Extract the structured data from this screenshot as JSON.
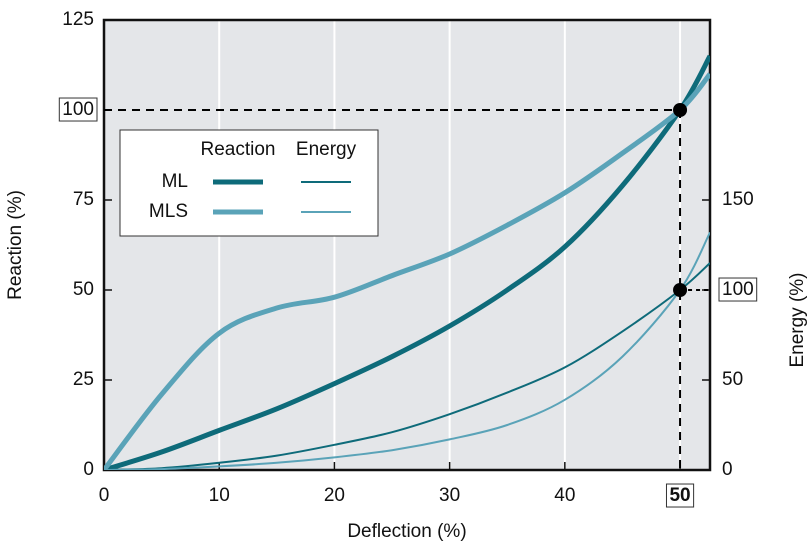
{
  "chart_data": {
    "type": "line",
    "x_label": "Deflection (%)",
    "y_label": "Reaction (%)",
    "y2_label": "Energy (%)",
    "x": [
      0,
      5,
      10,
      15,
      20,
      25,
      30,
      35,
      40,
      45,
      50,
      52.6
    ],
    "series": [
      {
        "name": "ML",
        "color": "#0e6b7a",
        "width": 5,
        "axis": "y",
        "values": [
          0,
          5,
          11,
          17,
          24,
          31.5,
          40,
          50,
          62,
          79,
          100,
          115
        ]
      },
      {
        "name": "MLS",
        "color": "#5aa3b8",
        "width": 5,
        "axis": "y",
        "values": [
          0,
          21,
          38,
          45,
          48,
          54,
          60,
          68,
          77,
          88,
          100,
          110
        ]
      },
      {
        "name": "ML",
        "color": "#0e6b7a",
        "width": 2,
        "axis": "y2",
        "values": [
          0,
          1,
          4,
          8,
          14,
          21,
          31,
          43,
          57,
          77,
          100,
          115
        ]
      },
      {
        "name": "MLS",
        "color": "#5aa3b8",
        "width": 2,
        "axis": "y2",
        "values": [
          0,
          0.5,
          2,
          4,
          7,
          11,
          17,
          25,
          39,
          63,
          100,
          132
        ]
      }
    ],
    "legend_columns": [
      "Reaction",
      "Energy"
    ],
    "xlim": [
      0,
      52.6
    ],
    "xticks": [
      0,
      10,
      20,
      30,
      40,
      50
    ],
    "ylim": [
      0,
      125
    ],
    "yticks": [
      0,
      25,
      50,
      75,
      100,
      125
    ],
    "y2lim": [
      0,
      250
    ],
    "y2ticks": [
      0,
      50,
      100,
      150
    ],
    "highlight": {
      "x": 50,
      "y": 100,
      "y2": 100
    },
    "grid": true
  }
}
